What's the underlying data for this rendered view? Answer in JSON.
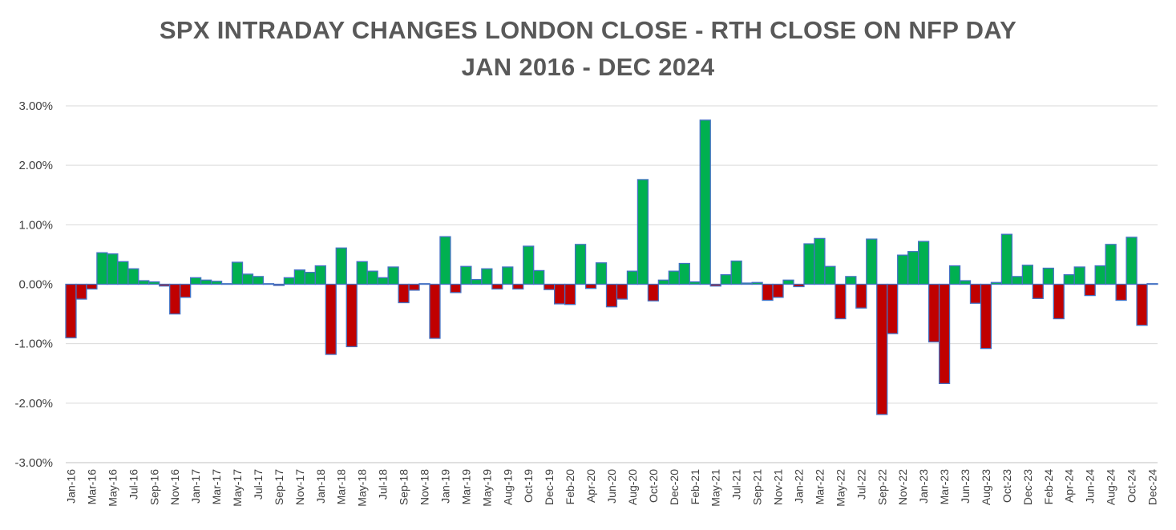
{
  "chart_data": {
    "type": "bar",
    "title": "SPX INTRADAY CHANGES LONDON CLOSE - RTH CLOSE ON NFP DAY",
    "subtitle": "JAN 2016 - DEC 2024",
    "xlabel": "",
    "ylabel": "",
    "ylim": [
      -3.0,
      3.0
    ],
    "y_ticks": [
      "3.00%",
      "2.00%",
      "1.00%",
      "0.00%",
      "-1.00%",
      "-2.00%",
      "-3.00%"
    ],
    "grid": true,
    "legend": "none",
    "positive_color": "#00b050",
    "negative_color": "#c00000",
    "bar_border_color": "#4472c4",
    "categories": [
      "Jan-16",
      "Feb-16",
      "Mar-16",
      "Apr-16",
      "May-16",
      "Jun-16",
      "Jul-16",
      "Aug-16",
      "Sep-16",
      "Oct-16",
      "Nov-16",
      "Dec-16",
      "Jan-17",
      "Feb-17",
      "Mar-17",
      "Apr-17",
      "May-17",
      "Jun-17",
      "Jul-17",
      "Aug-17",
      "Sep-17",
      "Oct-17",
      "Nov-17",
      "Dec-17",
      "Jan-18",
      "Feb-18",
      "Mar-18",
      "Apr-18",
      "May-18",
      "Jun-18",
      "Jul-18",
      "Aug-18",
      "Sep-18",
      "Oct-18",
      "Nov-18",
      "Dec-18",
      "Jan-19",
      "Feb-19",
      "Mar-19",
      "Apr-19",
      "May-19",
      "Jul-19",
      "Aug-19",
      "Sep-19",
      "Oct-19",
      "Nov-19",
      "Dec-19",
      "Jan-20",
      "Feb-20",
      "Mar-20",
      "Apr-20",
      "May-20",
      "Jun-20",
      "Jul-20",
      "Aug-20",
      "Sep-20",
      "Oct-20",
      "Nov-20",
      "Dec-20",
      "Jan-21",
      "Feb-21",
      "Apr-21",
      "May-21",
      "Jun-21",
      "Jul-21",
      "Aug-21",
      "Sep-21",
      "Oct-21",
      "Nov-21",
      "Dec-21",
      "Jan-22",
      "Feb-22",
      "Mar-22",
      "Apr-22",
      "May-22",
      "Jun-22",
      "Jul-22",
      "Aug-22",
      "Sep-22",
      "Oct-22",
      "Nov-22",
      "Dec-22",
      "Jan-23",
      "Feb-23",
      "Mar-23",
      "Apr-23",
      "Jun-23",
      "Jul-23",
      "Aug-23",
      "Sep-23",
      "Oct-23",
      "Nov-23",
      "Dec-23",
      "Jan-24",
      "Feb-24",
      "Mar-24",
      "Apr-24",
      "May-24",
      "Jun-24",
      "Jul-24",
      "Aug-24",
      "Sep-24",
      "Oct-24",
      "Nov-24",
      "Dec-24"
    ],
    "visible_tick_labels": [
      "Jan-16",
      "Mar-16",
      "May-16",
      "Jul-16",
      "Sep-16",
      "Nov-16",
      "Jan-17",
      "Mar-17",
      "May-17",
      "Jul-17",
      "Sep-17",
      "Nov-17",
      "Jan-18",
      "Mar-18",
      "May-18",
      "Jul-18",
      "Sep-18",
      "Nov-18",
      "Jan-19",
      "Mar-19",
      "May-19",
      "Aug-19",
      "Oct-19",
      "Dec-19",
      "Feb-20",
      "Apr-20",
      "Jun-20",
      "Aug-20",
      "Oct-20",
      "Dec-20",
      "Feb-21",
      "May-21",
      "Jul-21",
      "Sep-21",
      "Nov-21",
      "Jan-22",
      "Mar-22",
      "May-22",
      "Jul-22",
      "Sep-22",
      "Nov-22",
      "Jan-23",
      "Mar-23",
      "Jun-23",
      "Aug-23",
      "Oct-23",
      "Dec-23",
      "Feb-24",
      "Apr-24",
      "Jun-24",
      "Aug-24",
      "Oct-24",
      "Dec-24"
    ],
    "values": [
      -0.9,
      -0.25,
      -0.08,
      0.53,
      0.51,
      0.38,
      0.26,
      0.06,
      0.04,
      -0.03,
      -0.5,
      -0.22,
      0.11,
      0.07,
      0.05,
      0.01,
      0.37,
      0.17,
      0.13,
      0.01,
      -0.02,
      0.11,
      0.24,
      0.2,
      0.31,
      -1.18,
      0.61,
      -1.05,
      0.38,
      0.22,
      0.11,
      0.29,
      -0.31,
      -0.1,
      0.01,
      -0.91,
      0.8,
      -0.14,
      0.3,
      0.08,
      0.26,
      -0.08,
      0.29,
      -0.08,
      0.64,
      0.23,
      -0.09,
      -0.33,
      -0.34,
      0.67,
      -0.07,
      0.36,
      -0.38,
      -0.25,
      0.22,
      1.76,
      -0.28,
      0.07,
      0.22,
      0.35,
      0.04,
      2.76,
      -0.03,
      0.16,
      0.39,
      0.02,
      0.03,
      -0.27,
      -0.22,
      0.07,
      -0.04,
      0.68,
      0.77,
      0.3,
      -0.58,
      0.13,
      -0.4,
      0.76,
      -2.19,
      -0.83,
      0.49,
      0.55,
      0.72,
      -0.97,
      -1.67,
      0.31,
      0.06,
      -0.32,
      -1.08,
      0.03,
      0.84,
      0.13,
      0.32,
      -0.24,
      0.27,
      -0.58,
      0.16,
      0.29,
      -0.19,
      0.31,
      0.67,
      -0.27,
      0.79,
      -0.69,
      0.01
    ]
  }
}
